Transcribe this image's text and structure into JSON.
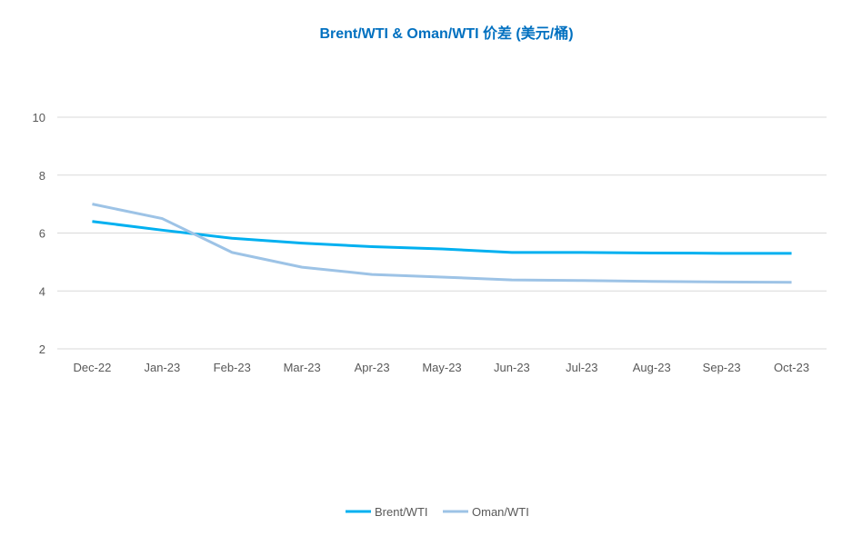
{
  "chart_data": {
    "type": "line",
    "title": "Brent/WTI & Oman/WTI 价差 (美元/桶)",
    "xlabel": "",
    "ylabel": "",
    "categories": [
      "Dec-22",
      "Jan-23",
      "Feb-23",
      "Mar-23",
      "Apr-23",
      "May-23",
      "Jun-23",
      "Jul-23",
      "Aug-23",
      "Sep-23",
      "Oct-23"
    ],
    "ylim": [
      2,
      10
    ],
    "yticks": [
      "2",
      "4",
      "6",
      "8",
      "10"
    ],
    "grid": true,
    "legend_position": "bottom",
    "series": [
      {
        "name": "Brent/WTI",
        "color": "#00b0f0",
        "values": [
          6.4,
          6.1,
          5.82,
          5.65,
          5.53,
          5.45,
          5.33,
          5.33,
          5.31,
          5.3,
          5.3
        ]
      },
      {
        "name": "Oman/WTI",
        "color": "#9dc3e6",
        "values": [
          7.0,
          6.5,
          5.33,
          4.82,
          4.57,
          4.48,
          4.38,
          4.36,
          4.33,
          4.31,
          4.3
        ]
      }
    ]
  }
}
